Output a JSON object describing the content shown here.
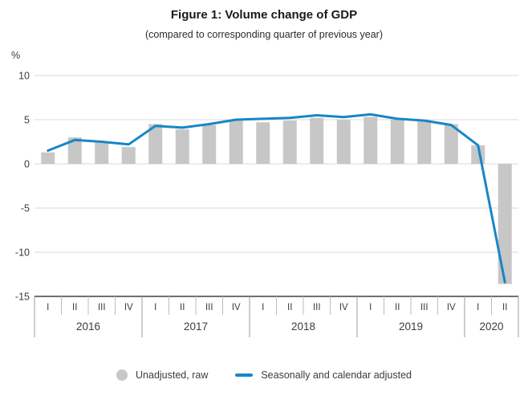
{
  "chart_data": {
    "type": "bar+line",
    "title": "Figure 1: Volume change of GDP",
    "subtitle": "(compared to corresponding quarter of previous year)",
    "ylabel": "%",
    "ylim": [
      -15,
      10
    ],
    "yticks": [
      10,
      5,
      0,
      -5,
      -10,
      -15
    ],
    "grid": true,
    "legend_position": "bottom",
    "x_groups": [
      {
        "year": "2016",
        "quarters": [
          "I",
          "II",
          "III",
          "IV"
        ]
      },
      {
        "year": "2017",
        "quarters": [
          "I",
          "II",
          "III",
          "IV"
        ]
      },
      {
        "year": "2018",
        "quarters": [
          "I",
          "II",
          "III",
          "IV"
        ]
      },
      {
        "year": "2019",
        "quarters": [
          "I",
          "II",
          "III",
          "IV"
        ]
      },
      {
        "year": "2020",
        "quarters": [
          "I",
          "II"
        ]
      }
    ],
    "series": [
      {
        "name": "Unadjusted, raw",
        "type": "bar",
        "color": "#c7c7c7",
        "values": [
          1.3,
          3.0,
          2.4,
          1.9,
          4.5,
          3.9,
          4.4,
          4.9,
          4.7,
          4.9,
          5.2,
          5.0,
          5.3,
          5.0,
          4.9,
          4.5,
          2.1,
          -13.6
        ]
      },
      {
        "name": "Seasonally and calendar adjusted",
        "type": "line",
        "color": "#1886c7",
        "values": [
          1.5,
          2.7,
          2.5,
          2.2,
          4.3,
          4.1,
          4.5,
          5.0,
          5.1,
          5.2,
          5.5,
          5.3,
          5.6,
          5.1,
          4.9,
          4.4,
          2.1,
          -13.4
        ]
      }
    ]
  },
  "colors": {
    "bar": "#c7c7c7",
    "line": "#1886c7",
    "gridline": "#d9d9d9",
    "axis_line": "#404040",
    "separator_year": "#9e9e9e",
    "separator_quarter": "#bdbdbd",
    "text": "#3c3c3c"
  }
}
